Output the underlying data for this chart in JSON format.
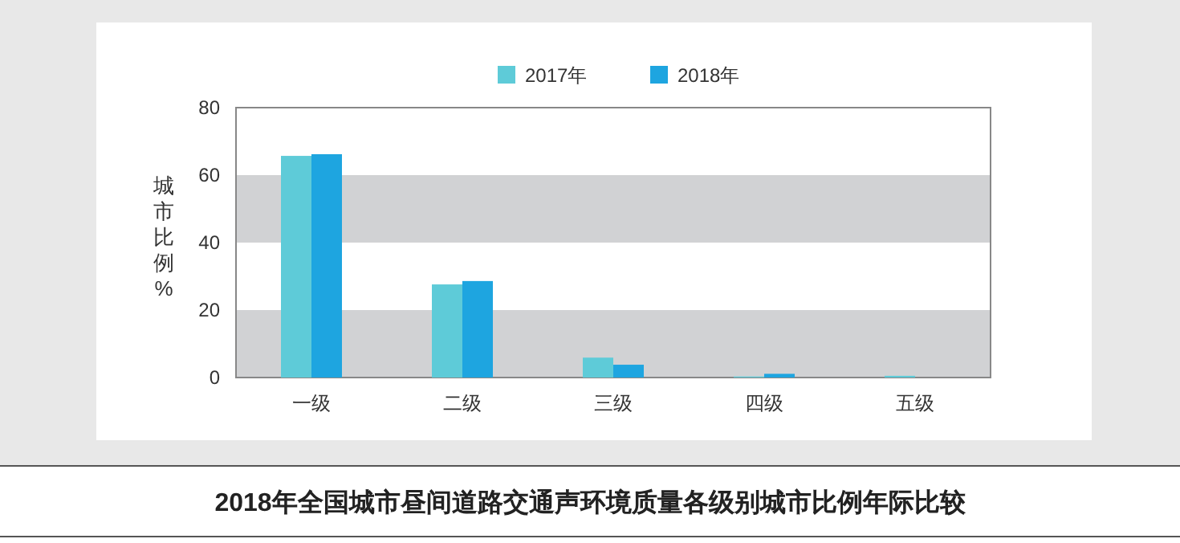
{
  "chart_data": {
    "type": "bar",
    "title": "2018年全国城市昼间道路交通声环境质量各级别城市比例年际比较",
    "ylabel": "城市比例%",
    "categories": [
      "一级",
      "二级",
      "三级",
      "四级",
      "五级"
    ],
    "series": [
      {
        "name": "2017年",
        "color": "#5ecbd8",
        "values": [
          65.7,
          27.6,
          5.9,
          0.3,
          0.5
        ]
      },
      {
        "name": "2018年",
        "color": "#1ea5e0",
        "values": [
          66.2,
          28.6,
          3.8,
          1.1,
          null
        ]
      }
    ],
    "ylim": [
      0,
      80
    ],
    "yticks": [
      0,
      20,
      40,
      60,
      80
    ],
    "bands": [
      {
        "axis": "y",
        "from": 0,
        "to": 20,
        "color": "#d1d2d4"
      },
      {
        "axis": "y",
        "from": 40,
        "to": 60,
        "color": "#d1d2d4"
      }
    ],
    "legend": "top"
  }
}
